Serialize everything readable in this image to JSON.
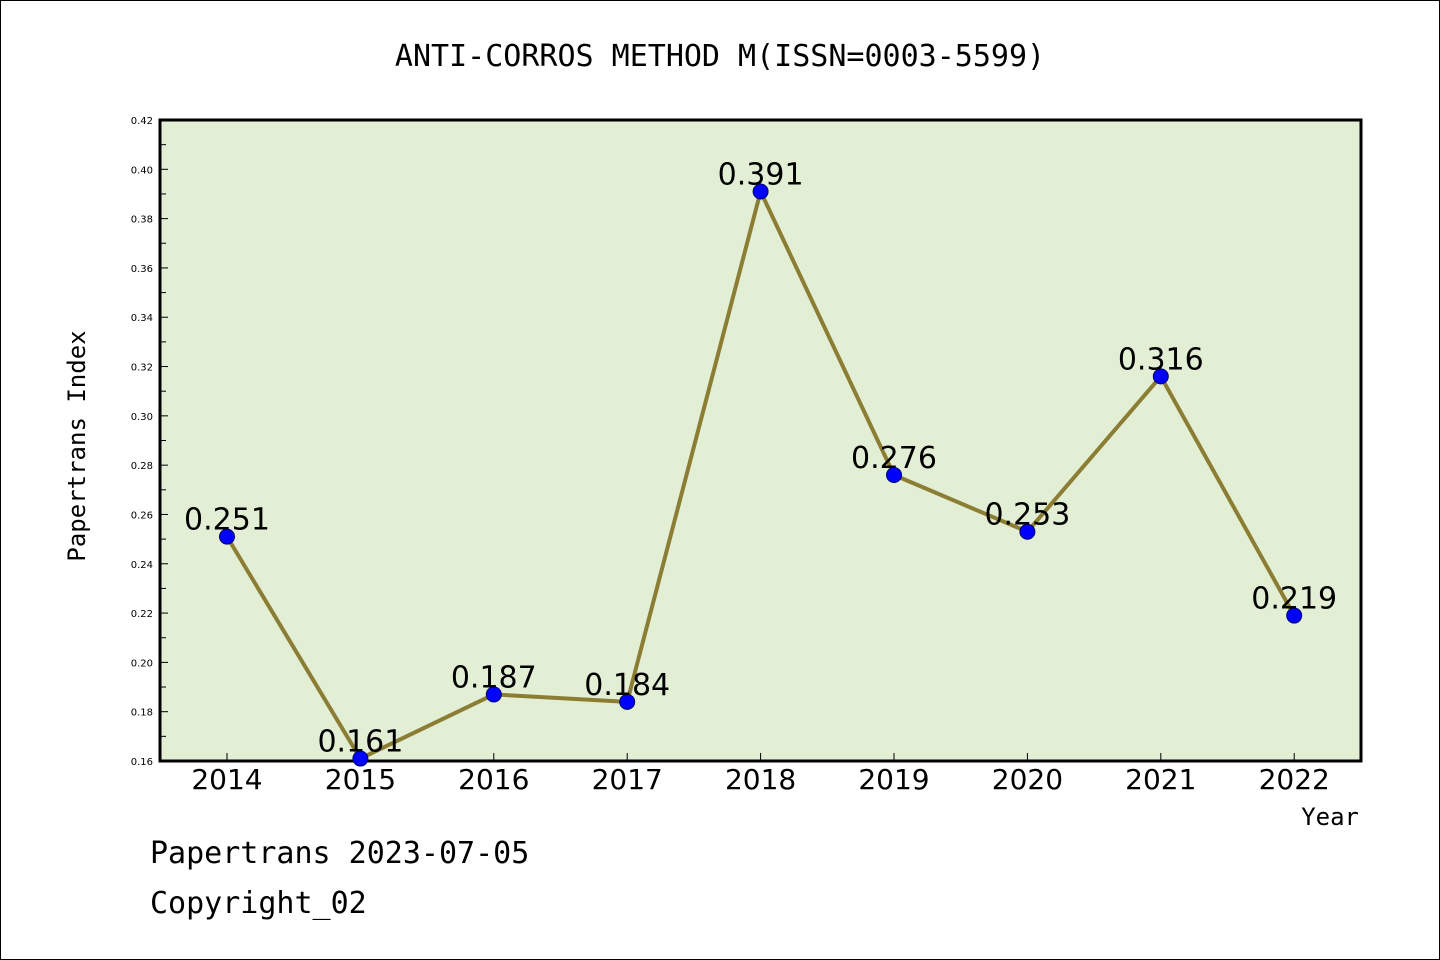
{
  "chart_data": {
    "type": "line",
    "title": "ANTI-CORROS METHOD M(ISSN=0003-5599)",
    "xlabel": "Year",
    "ylabel": "Papertrans Index",
    "categories": [
      "2014",
      "2015",
      "2016",
      "2017",
      "2018",
      "2019",
      "2020",
      "2021",
      "2022"
    ],
    "series": [
      {
        "values": [
          0.251,
          0.161,
          0.187,
          0.184,
          0.391,
          0.276,
          0.253,
          0.316,
          0.219
        ]
      }
    ],
    "data_labels": [
      "0.251",
      "0.161",
      "0.187",
      "0.184",
      "0.391",
      "0.276",
      "0.253",
      "0.316",
      "0.219"
    ],
    "ylim": [
      0.16,
      0.42
    ],
    "yticks": [
      "0.16",
      "0.18",
      "0.20",
      "0.22",
      "0.24",
      "0.26",
      "0.28",
      "0.30",
      "0.32",
      "0.34",
      "0.36",
      "0.38",
      "0.40",
      "0.42"
    ],
    "grid": false,
    "colors": {
      "plot_bg": "#e2efd5",
      "line": "#8b7d33",
      "marker": "#0000ff"
    }
  },
  "footer": {
    "date_line": "Papertrans 2023-07-05",
    "copyright": "Copyright_02"
  }
}
